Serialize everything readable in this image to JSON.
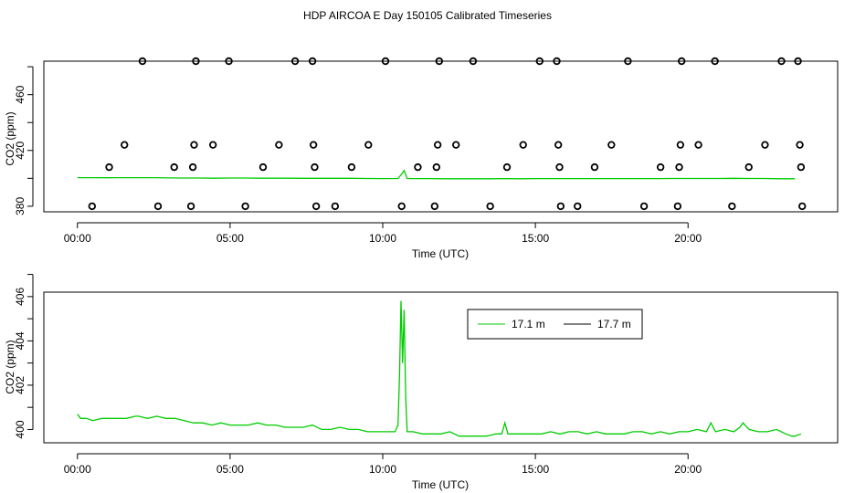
{
  "page_title": "HDP AIRCOA E  Day 150105  Calibrated Timeseries",
  "chart_data": [
    {
      "type": "scatter",
      "title": "HDP AIRCOA E  Day 150105  Calibrated Timeseries",
      "xlabel": "Time (UTC)",
      "ylabel": "CO2 (ppm)",
      "xlim": [
        -1.1,
        24.9
      ],
      "ylim": [
        376,
        484
      ],
      "xticks": [
        0,
        5,
        10,
        15,
        20
      ],
      "xtick_labels": [
        "00:00",
        "05:00",
        "10:00",
        "15:00",
        "20:00"
      ],
      "yticks": [
        380,
        420,
        460
      ],
      "ytick_labels": [
        "380",
        "420",
        "460"
      ],
      "series": [
        {
          "kind": "points",
          "color": "#000000",
          "x": [
            0.48,
            1.04,
            1.54,
            2.13,
            2.64,
            3.17,
            3.72,
            3.78,
            3.82,
            3.88,
            4.44,
            4.96,
            5.5,
            6.08,
            6.6,
            7.13,
            7.7,
            7.73,
            7.77,
            7.82,
            8.44,
            8.98,
            9.53,
            10.09,
            10.62,
            11.15,
            11.7,
            11.76,
            11.8,
            11.85,
            12.4,
            12.96,
            13.52,
            14.07,
            14.6,
            15.14,
            15.7,
            15.75,
            15.79,
            15.83,
            16.38,
            16.94,
            17.49,
            18.03,
            18.56,
            19.1,
            19.66,
            19.71,
            19.75,
            19.79,
            20.34,
            20.88,
            21.44,
            21.99,
            22.52,
            23.06,
            23.6,
            23.66,
            23.7,
            23.74
          ],
          "y": [
            380,
            408,
            424,
            484,
            380,
            408,
            380,
            408,
            424,
            484,
            424,
            484,
            380,
            408,
            424,
            484,
            484,
            424,
            408,
            380,
            380,
            408,
            424,
            484,
            380,
            408,
            380,
            408,
            424,
            484,
            424,
            484,
            380,
            408,
            424,
            484,
            484,
            424,
            408,
            380,
            380,
            408,
            424,
            484,
            380,
            408,
            380,
            408,
            424,
            484,
            424,
            484,
            380,
            408,
            424,
            484,
            484,
            424,
            408,
            380
          ]
        },
        {
          "kind": "line",
          "color": "#00cc00",
          "x": [
            0.0,
            0.5,
            1.0,
            1.5,
            2.0,
            2.5,
            3.0,
            3.5,
            4.0,
            4.5,
            5.0,
            5.5,
            6.0,
            6.5,
            7.0,
            7.5,
            8.0,
            8.5,
            9.0,
            9.5,
            10.0,
            10.5,
            10.6,
            10.7,
            10.8,
            11.0,
            11.5,
            12.0,
            12.5,
            13.0,
            13.5,
            14.0,
            14.5,
            15.0,
            15.5,
            16.0,
            16.5,
            17.0,
            17.5,
            18.0,
            18.5,
            19.0,
            19.5,
            20.0,
            20.5,
            21.0,
            21.5,
            22.0,
            22.5,
            23.0,
            23.5
          ],
          "y": [
            400.5,
            400.5,
            400.4,
            400.5,
            400.5,
            400.5,
            400.3,
            400.2,
            400.2,
            400.1,
            400.2,
            400.2,
            400.1,
            400.1,
            400.1,
            400.0,
            400.0,
            400.0,
            400.0,
            399.9,
            399.8,
            399.9,
            402.5,
            405.5,
            399.9,
            399.8,
            399.8,
            399.7,
            399.7,
            399.7,
            399.7,
            399.8,
            399.7,
            399.8,
            399.8,
            399.8,
            399.8,
            399.8,
            399.8,
            399.8,
            399.8,
            399.8,
            399.9,
            399.9,
            399.9,
            399.9,
            400.0,
            399.9,
            399.9,
            399.7,
            399.7
          ]
        }
      ]
    },
    {
      "type": "line",
      "xlabel": "Time (UTC)",
      "ylabel": "CO2 (ppm)",
      "xlim": [
        -1.1,
        24.9
      ],
      "ylim": [
        399.4,
        406.2
      ],
      "xticks": [
        0,
        5,
        10,
        15,
        20
      ],
      "xtick_labels": [
        "00:00",
        "05:00",
        "10:00",
        "15:00",
        "20:00"
      ],
      "yticks": [
        400,
        402,
        404,
        406
      ],
      "ytick_labels": [
        "400",
        "402",
        "404",
        "406"
      ],
      "legend": {
        "position": "top-right"
      },
      "series": [
        {
          "name": "17.1 m",
          "color": "#00cc00",
          "x": [
            0.0,
            0.1,
            0.3,
            0.5,
            0.8,
            1.0,
            1.3,
            1.6,
            1.9,
            2.0,
            2.3,
            2.6,
            2.9,
            3.2,
            3.5,
            3.8,
            4.1,
            4.4,
            4.7,
            5.0,
            5.3,
            5.6,
            5.9,
            6.2,
            6.5,
            6.8,
            7.1,
            7.4,
            7.7,
            8.0,
            8.3,
            8.6,
            8.9,
            9.2,
            9.5,
            9.8,
            10.1,
            10.4,
            10.5,
            10.55,
            10.6,
            10.65,
            10.7,
            10.75,
            10.8,
            11.0,
            11.3,
            11.6,
            11.9,
            12.2,
            12.5,
            12.8,
            13.1,
            13.4,
            13.7,
            13.9,
            14.0,
            14.1,
            14.3,
            14.6,
            14.9,
            15.2,
            15.5,
            15.8,
            16.1,
            16.4,
            16.7,
            17.0,
            17.3,
            17.6,
            17.9,
            18.2,
            18.5,
            18.8,
            19.1,
            19.4,
            19.7,
            20.0,
            20.3,
            20.6,
            20.75,
            20.9,
            21.2,
            21.5,
            21.7,
            21.8,
            22.0,
            22.3,
            22.6,
            22.9,
            23.2,
            23.4,
            23.5,
            23.7
          ],
          "y": [
            400.7,
            400.5,
            400.5,
            400.4,
            400.5,
            400.5,
            400.5,
            400.5,
            400.6,
            400.6,
            400.5,
            400.6,
            400.5,
            400.5,
            400.4,
            400.3,
            400.3,
            400.2,
            400.3,
            400.2,
            400.2,
            400.2,
            400.3,
            400.2,
            400.2,
            400.1,
            400.1,
            400.1,
            400.2,
            400.0,
            400.0,
            400.1,
            400.0,
            400.0,
            399.9,
            399.9,
            399.9,
            399.9,
            400.2,
            402.5,
            405.8,
            403.0,
            405.4,
            401.5,
            399.9,
            399.9,
            399.8,
            399.8,
            399.8,
            399.9,
            399.7,
            399.7,
            399.7,
            399.7,
            399.8,
            399.8,
            400.3,
            399.8,
            399.8,
            399.8,
            399.8,
            399.8,
            399.9,
            399.8,
            399.9,
            399.9,
            399.8,
            399.9,
            399.8,
            399.8,
            399.8,
            399.9,
            399.9,
            399.8,
            399.9,
            399.8,
            399.9,
            399.9,
            400.0,
            399.9,
            400.3,
            399.9,
            400.0,
            399.9,
            400.1,
            400.3,
            400.0,
            399.9,
            399.9,
            400.0,
            399.8,
            399.7,
            399.7,
            399.8
          ]
        },
        {
          "name": "17.7 m",
          "color": "#000000",
          "x": [],
          "y": []
        }
      ]
    }
  ]
}
